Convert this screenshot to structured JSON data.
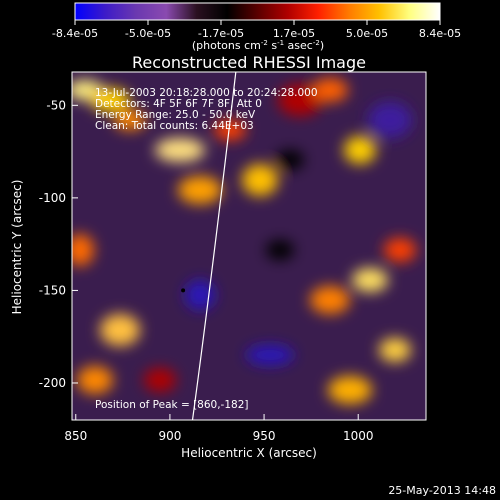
{
  "colorbar": {
    "ticks": [
      "-8.4e-05",
      "-5.0e-05",
      "-1.7e-05",
      "1.7e-05",
      "5.0e-05",
      "8.4e-05"
    ],
    "unit_label": "(photons cm",
    "unit_exp1": "-2",
    "unit_mid": " s",
    "unit_exp2": "-1",
    "unit_mid2": " asec",
    "unit_exp3": "-2",
    "unit_end": ")",
    "colors": [
      "#0000ff",
      "#3d1bc8",
      "#6a38b0",
      "#8a4ab0",
      "#2a1020",
      "#000000",
      "#5a0000",
      "#b00000",
      "#ff2000",
      "#ff7a00",
      "#ffc000",
      "#ffff80",
      "#ffffff"
    ]
  },
  "chart_data": {
    "type": "heatmap",
    "title": "Reconstructed RHESSI Image",
    "xlabel": "Heliocentric X (arcsec)",
    "ylabel": "Heliocentric Y (arcsec)",
    "xlim": [
      848,
      1036
    ],
    "ylim": [
      -220,
      -32
    ],
    "xticks": [
      850,
      900,
      950,
      1000
    ],
    "yticks": [
      -50,
      -100,
      -150,
      -200
    ],
    "annotations": [
      "13-Jul-2003 20:18:28.000 to 20:24:28.000",
      "Detectors: 4F 5F 6F 7F 8F, Att 0",
      "Energy Range: 25.0 - 50.0 keV",
      "Clean: Total counts: 6.44E+03"
    ],
    "peak_label": "Position of Peak = [860,-182]",
    "peak": [
      860,
      -182
    ],
    "limb_curve": [
      [
        935,
        -32
      ],
      [
        922,
        -145
      ],
      [
        912,
        -220
      ]
    ],
    "marker": [
      907,
      -150
    ]
  },
  "footer": {
    "date": "25-May-2013 14:48"
  }
}
